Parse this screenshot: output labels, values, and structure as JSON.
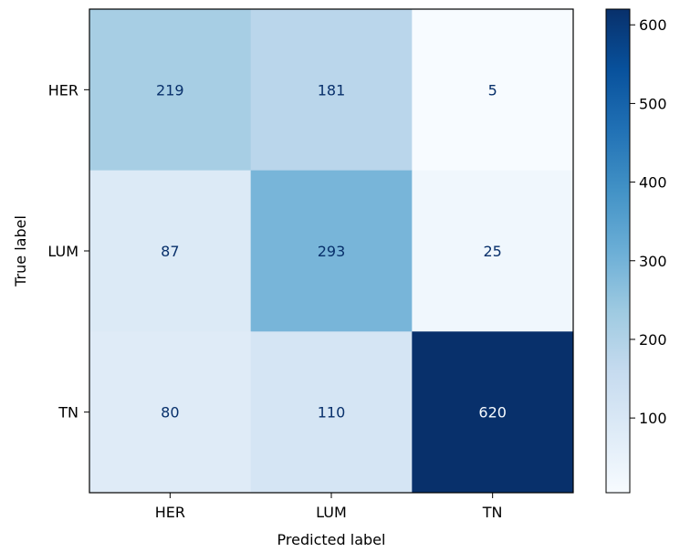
{
  "chart_data": {
    "type": "heatmap",
    "subtype": "confusion-matrix",
    "title": "",
    "xlabel": "Predicted label",
    "ylabel": "True label",
    "x_categories": [
      "HER",
      "LUM",
      "TN"
    ],
    "y_categories": [
      "HER",
      "LUM",
      "TN"
    ],
    "matrix": [
      [
        219,
        181,
        5
      ],
      [
        87,
        293,
        25
      ],
      [
        80,
        110,
        620
      ]
    ],
    "colormap": "Blues",
    "colorbar": {
      "range": [
        5,
        620
      ],
      "ticks": [
        100,
        200,
        300,
        400,
        500,
        600
      ]
    },
    "grid": false
  }
}
